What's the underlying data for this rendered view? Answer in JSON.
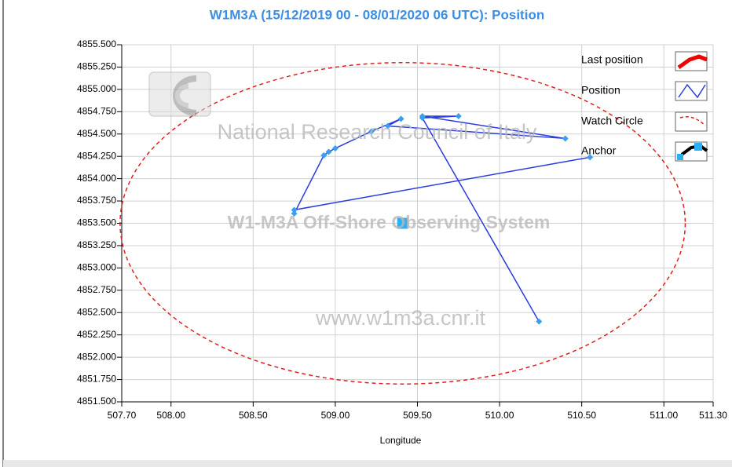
{
  "chart_data": {
    "type": "scatter",
    "title": "W1M3A (15/12/2019 00 - 08/01/2020 06 UTC): Position",
    "xlabel": "Longitude",
    "watermarks": [
      "National Research Council of Italy",
      "W1-M3A Off-Shore Observing System",
      "www.w1m3a.cnr.it"
    ],
    "legend": [
      "Last position",
      "Position",
      "Watch Circle",
      "Anchor"
    ],
    "series": [
      {
        "name": "Position",
        "color": "#2a3de0",
        "marker_color": "#3a9ff0",
        "x": [
          510.55,
          508.75,
          508.75,
          508.93,
          508.96,
          509.0,
          509.22,
          509.4,
          509.32,
          510.4,
          509.53,
          509.75,
          509.53,
          510.24
        ],
        "values": [
          4854.24,
          4853.65,
          4853.61,
          4854.26,
          4854.3,
          4854.34,
          4854.53,
          4854.67,
          4854.59,
          4854.45,
          4854.7,
          4854.7,
          4854.68,
          4852.4
        ]
      }
    ],
    "anchor": {
      "x": 509.41,
      "y": 4853.5,
      "color": "#2bb0f5"
    },
    "watch_circle": {
      "center": [
        509.41,
        4853.5
      ],
      "radius_x": 1.72,
      "radius_y": 1.8,
      "color": "#e02020"
    },
    "xlim": [
      507.7,
      511.3
    ],
    "xticks": [
      {
        "value": 507.7,
        "label": "507.70"
      },
      {
        "value": 508,
        "label": "508.00"
      },
      {
        "value": 508.5,
        "label": "508.50"
      },
      {
        "value": 509,
        "label": "509.00"
      },
      {
        "value": 509.5,
        "label": "509.50"
      },
      {
        "value": 510,
        "label": "510.00"
      },
      {
        "value": 510.5,
        "label": "510.50"
      },
      {
        "value": 511,
        "label": "511.00"
      },
      {
        "value": 511.3,
        "label": "511.30"
      }
    ],
    "ylim": [
      4851.5,
      4855.5
    ],
    "yticks": [
      {
        "value": 4851.5,
        "label": "4851.500"
      },
      {
        "value": 4851.75,
        "label": "4851.750"
      },
      {
        "value": 4852,
        "label": "4852.000"
      },
      {
        "value": 4852.25,
        "label": "4852.250"
      },
      {
        "value": 4852.5,
        "label": "4852.500"
      },
      {
        "value": 4852.75,
        "label": "4852.750"
      },
      {
        "value": 4853,
        "label": "4853.000"
      },
      {
        "value": 4853.25,
        "label": "4853.250"
      },
      {
        "value": 4853.5,
        "label": "4853.500"
      },
      {
        "value": 4853.75,
        "label": "4853.750"
      },
      {
        "value": 4854,
        "label": "4854.000"
      },
      {
        "value": 4854.25,
        "label": "4854.250"
      },
      {
        "value": 4854.5,
        "label": "4854.500"
      },
      {
        "value": 4854.75,
        "label": "4854.750"
      },
      {
        "value": 4855,
        "label": "4855.000"
      },
      {
        "value": 4855.25,
        "label": "4855.250"
      },
      {
        "value": 4855.5,
        "label": "4855.500"
      }
    ],
    "grid": true
  }
}
